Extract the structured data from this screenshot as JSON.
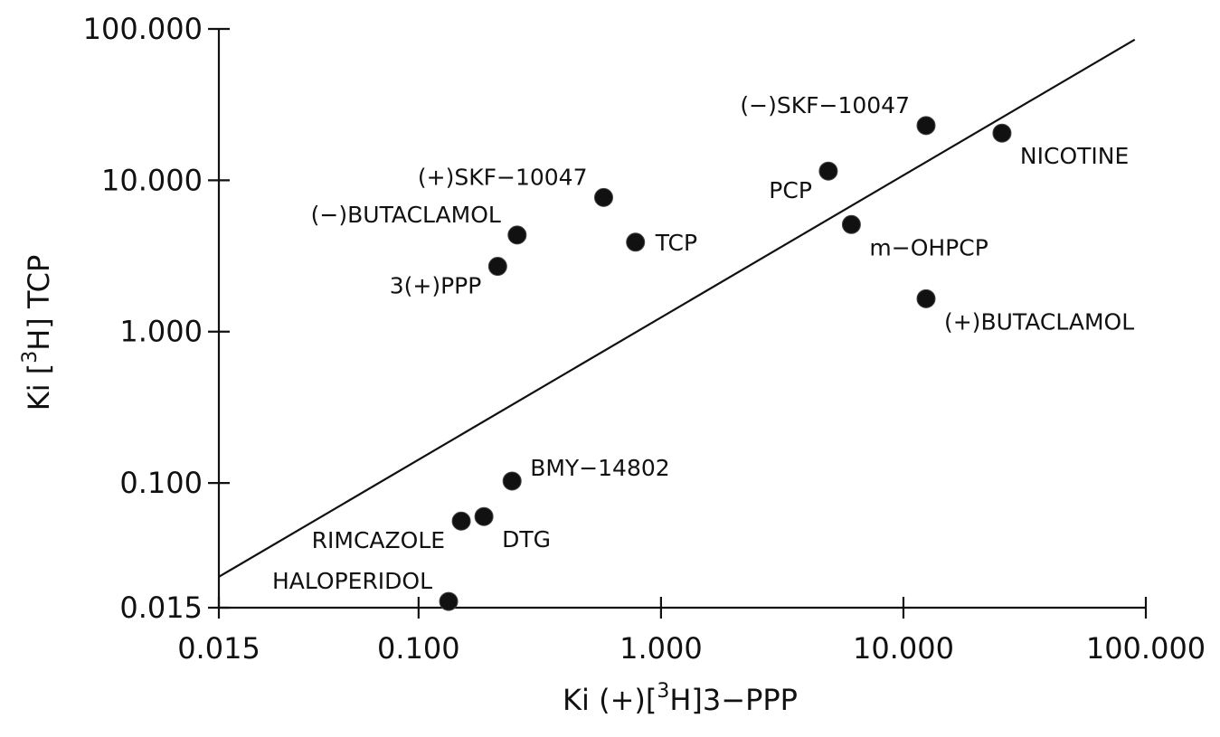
{
  "chart_data": {
    "type": "scatter",
    "title": "",
    "xscale": "log",
    "yscale": "log",
    "xlim": [
      0.015,
      100
    ],
    "ylim": [
      0.015,
      100
    ],
    "xticks": [
      {
        "value": 0.015,
        "label": "0.015"
      },
      {
        "value": 0.1,
        "label": "0.100"
      },
      {
        "value": 1,
        "label": "1.000"
      },
      {
        "value": 10,
        "label": "10.000"
      },
      {
        "value": 100,
        "label": "100.000"
      }
    ],
    "yticks": [
      {
        "value": 0.015,
        "label": "0.015"
      },
      {
        "value": 0.1,
        "label": "0.100"
      },
      {
        "value": 1,
        "label": "1.000"
      },
      {
        "value": 10,
        "label": "10.000"
      },
      {
        "value": 100,
        "label": "100.000"
      }
    ],
    "xlabel": {
      "prefix": "Ki (+)[",
      "sup": "3",
      "suffix": "H]3−PPP"
    },
    "ylabel": {
      "prefix": "Ki [",
      "sup": "3",
      "suffix": "H] TCP"
    },
    "grid": false,
    "legend": "none",
    "points": [
      {
        "label": "HALOPERIDOL",
        "x": 0.133,
        "y": 0.0165,
        "label_pos": "upper-left"
      },
      {
        "label": "RIMCAZOLE",
        "x": 0.15,
        "y": 0.056,
        "label_pos": "lower-left"
      },
      {
        "label": "DTG",
        "x": 0.186,
        "y": 0.06,
        "label_pos": "lower-right"
      },
      {
        "label": "BMY−14802",
        "x": 0.243,
        "y": 0.103,
        "label_pos": "upper-right"
      },
      {
        "label": "3(+)PPP",
        "x": 0.212,
        "y": 2.7,
        "label_pos": "lower-left"
      },
      {
        "label": "(−)BUTACLAMOL",
        "x": 0.255,
        "y": 4.35,
        "label_pos": "upper-left"
      },
      {
        "label": "(+)SKF−10047",
        "x": 0.58,
        "y": 7.7,
        "label_pos": "upper-left"
      },
      {
        "label": "TCP",
        "x": 0.785,
        "y": 3.9,
        "label_pos": "right"
      },
      {
        "label": "PCP",
        "x": 4.9,
        "y": 11.5,
        "label_pos": "lower-left"
      },
      {
        "label": "m−OHPCP",
        "x": 6.1,
        "y": 5.1,
        "label_pos": "lower-right"
      },
      {
        "label": "(−)SKF−10047",
        "x": 12.4,
        "y": 23,
        "label_pos": "upper-left"
      },
      {
        "label": "(+)BUTACLAMOL",
        "x": 12.4,
        "y": 1.65,
        "label_pos": "lower-right"
      },
      {
        "label": "NICOTINE",
        "x": 25.5,
        "y": 20.5,
        "label_pos": "lower-right"
      }
    ],
    "fit_line": {
      "x": [
        0.015,
        90
      ],
      "y": [
        0.024,
        85
      ]
    }
  }
}
